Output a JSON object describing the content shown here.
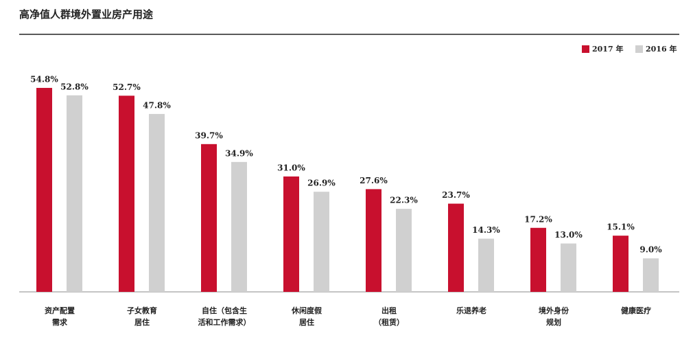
{
  "chart_data": {
    "type": "bar",
    "title": "高净值人群境外置业房产用途",
    "categories": [
      [
        "资产配置",
        "需求"
      ],
      [
        "子女教育",
        "居住"
      ],
      [
        "自住（包含生",
        "活和工作需求）"
      ],
      [
        "休闲度假",
        "居住"
      ],
      [
        "出租",
        "（租赁）"
      ],
      [
        "乐退养老"
      ],
      [
        "境外身份",
        "规划"
      ],
      [
        "健康医疗"
      ]
    ],
    "series": [
      {
        "name": "2017 年",
        "color": "#c8102e",
        "values": [
          54.8,
          52.7,
          39.7,
          31.0,
          27.6,
          23.7,
          17.2,
          15.1
        ],
        "value_labels": [
          "54.8%",
          "52.7%",
          "39.7%",
          "31.0%",
          "27.6%",
          "23.7%",
          "17.2%",
          "15.1%"
        ]
      },
      {
        "name": "2016 年",
        "color": "#d0d0d0",
        "values": [
          52.8,
          47.8,
          34.9,
          26.9,
          22.3,
          14.3,
          13.0,
          9.0
        ],
        "value_labels": [
          "52.8%",
          "47.8%",
          "34.9%",
          "26.9%",
          "22.3%",
          "14.3%",
          "13.0%",
          "9.0%"
        ]
      }
    ]
  }
}
